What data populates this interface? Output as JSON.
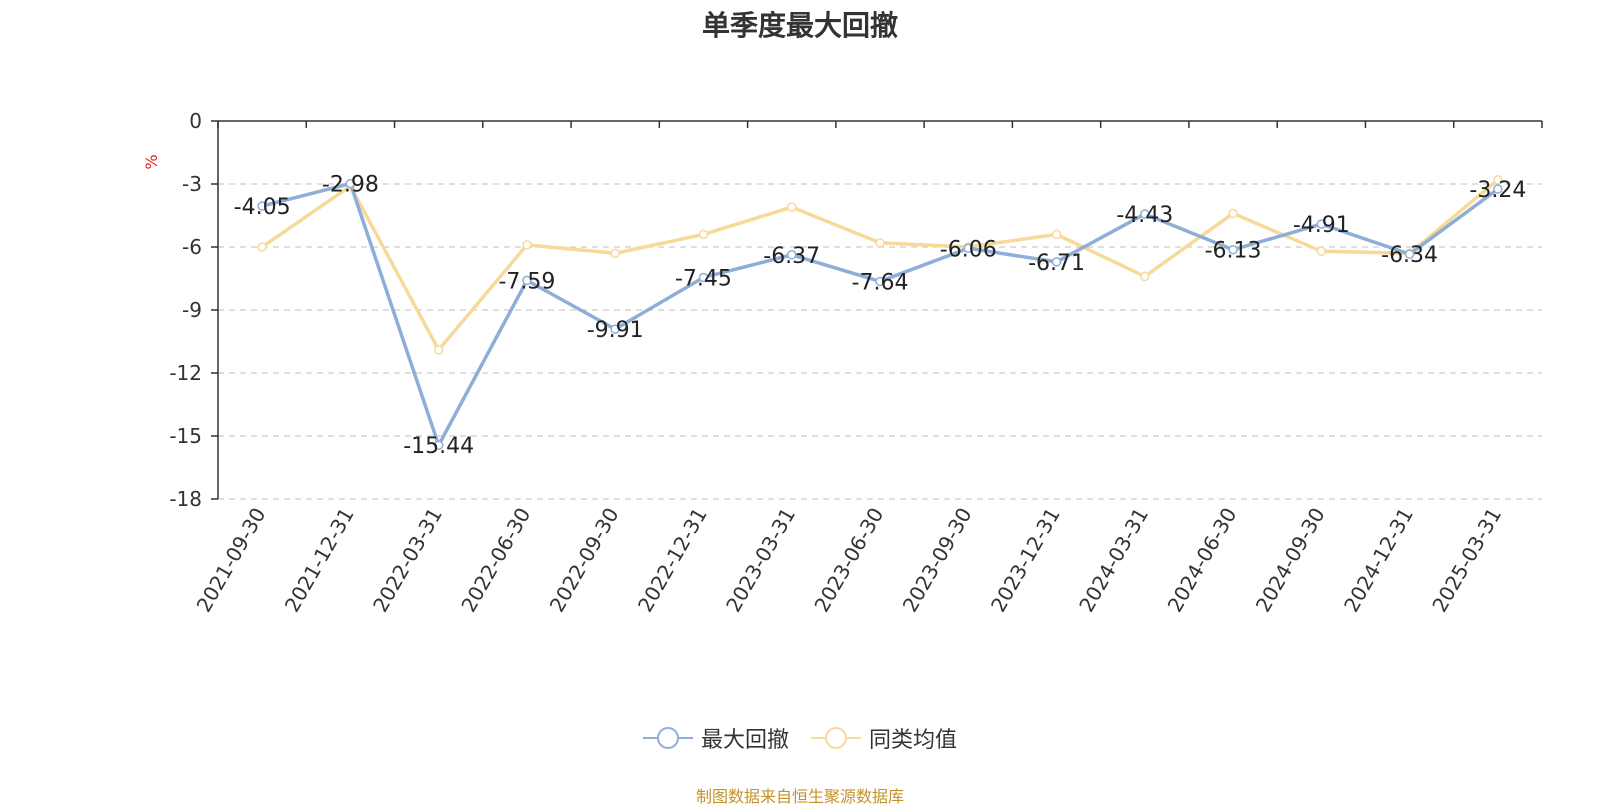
{
  "chart_data": {
    "type": "line",
    "title": "单季度最大回撤",
    "ylabel": "%",
    "categories": [
      "2021-09-30",
      "2021-12-31",
      "2022-03-31",
      "2022-06-30",
      "2022-09-30",
      "2022-12-31",
      "2023-03-31",
      "2023-06-30",
      "2023-09-30",
      "2023-12-31",
      "2024-03-31",
      "2024-06-30",
      "2024-09-30",
      "2024-12-31",
      "2025-03-31"
    ],
    "series": [
      {
        "name": "最大回撤",
        "color": "#8eaed8",
        "values": [
          -4.05,
          -2.98,
          -15.44,
          -7.59,
          -9.91,
          -7.45,
          -6.37,
          -7.64,
          -6.06,
          -6.71,
          -4.43,
          -6.13,
          -4.91,
          -6.34,
          -3.24
        ],
        "labels": [
          "-4.05",
          "-2.98",
          "-15.44",
          "-7.59",
          "-9.91",
          "-7.45",
          "-6.37",
          "-7.64",
          "-6.06",
          "-6.71",
          "-4.43",
          "-6.13",
          "-4.91",
          "-6.34",
          "-3.24"
        ]
      },
      {
        "name": "同类均值",
        "color": "#f7d99a",
        "values": [
          -6.0,
          -3.1,
          -10.9,
          -5.9,
          -6.3,
          -5.4,
          -4.1,
          -5.8,
          -6.0,
          -5.4,
          -7.4,
          -4.4,
          -6.2,
          -6.3,
          -2.8
        ]
      }
    ],
    "ylim": [
      -18,
      0
    ],
    "yticks": [
      "0",
      "-3",
      "-6",
      "-9",
      "-12",
      "-15",
      "-18"
    ],
    "grid": true,
    "legend_position": "bottom-center"
  },
  "footer": {
    "source": "制图数据来自恒生聚源数据库"
  }
}
